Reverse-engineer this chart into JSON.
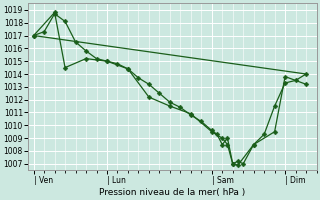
{
  "title": "",
  "xlabel": "Pression niveau de la mer( hPa )",
  "ylabel": "",
  "bg_color": "#cce8e0",
  "grid_color": "#ffffff",
  "line_color": "#1a5e1a",
  "ylim": [
    1006.5,
    1019.5
  ],
  "yticks": [
    1007,
    1008,
    1009,
    1010,
    1011,
    1012,
    1013,
    1014,
    1015,
    1016,
    1017,
    1018,
    1019
  ],
  "xtick_labels": [
    "| Ven",
    "| Lun",
    "| Sam",
    "| Dim"
  ],
  "xtick_positions": [
    0,
    7,
    17,
    24
  ],
  "xlim": [
    -0.5,
    27
  ],
  "series1_x": [
    0,
    1,
    2,
    3,
    4,
    5,
    6,
    7,
    8,
    9,
    10,
    11,
    12,
    13,
    14,
    15,
    16,
    17,
    17.5,
    18,
    18.5,
    19,
    19.5,
    20,
    21,
    22,
    23,
    24,
    25,
    26
  ],
  "series1_y": [
    1017.0,
    1017.3,
    1018.7,
    1018.1,
    1016.5,
    1015.8,
    1015.2,
    1015.0,
    1014.8,
    1014.4,
    1013.7,
    1013.2,
    1012.5,
    1011.8,
    1011.4,
    1010.8,
    1010.3,
    1009.6,
    1009.3,
    1008.5,
    1009.0,
    1007.0,
    1007.2,
    1007.0,
    1008.5,
    1009.3,
    1011.5,
    1013.3,
    1013.5,
    1014.0
  ],
  "series2_x": [
    0,
    2,
    3,
    5,
    7,
    9,
    11,
    13,
    15,
    17,
    18,
    18.5,
    19,
    19.5,
    21,
    23,
    24,
    26
  ],
  "series2_y": [
    1017.0,
    1018.8,
    1014.5,
    1015.2,
    1015.0,
    1014.4,
    1012.2,
    1011.5,
    1010.9,
    1009.5,
    1009.0,
    1008.5,
    1007.0,
    1006.9,
    1008.5,
    1009.5,
    1013.8,
    1013.2
  ],
  "trend_x": [
    0,
    26
  ],
  "trend_y": [
    1017.0,
    1014.0
  ],
  "marker_size": 2.5,
  "linewidth": 0.9
}
